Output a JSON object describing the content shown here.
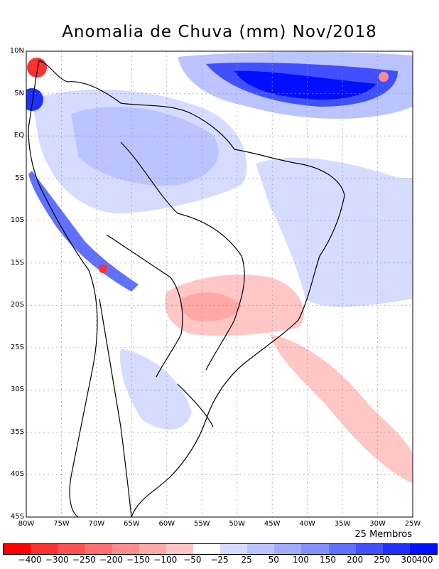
{
  "title": "Anomalia de Chuva (mm) Nov/2018",
  "members_label": "25 Membros",
  "lat_labels": [
    "10N",
    "5N",
    "EQ",
    "5S",
    "10S",
    "15S",
    "20S",
    "25S",
    "30S",
    "35S",
    "40S",
    "45S"
  ],
  "lon_labels": [
    "80W",
    "75W",
    "70W",
    "65W",
    "60W",
    "55W",
    "50W",
    "45W",
    "40W",
    "35W",
    "30W",
    "25W"
  ],
  "colorbar": {
    "colors": [
      "#ff0000",
      "#ff3030",
      "#ff5050",
      "#ff6e6e",
      "#ff8c8c",
      "#ffa8a8",
      "#ffc6c6",
      "#ffffff",
      "#d6dcff",
      "#bcc4ff",
      "#a0aaff",
      "#8490ff",
      "#6070ff",
      "#4050ff",
      "#2030ff",
      "#0010ff"
    ],
    "labels": [
      "−400",
      "−300",
      "−250",
      "−200",
      "−150",
      "−100",
      "−50",
      "−25",
      "25",
      "50",
      "100",
      "150",
      "200",
      "250",
      "300",
      "400"
    ]
  },
  "legend_colors": {
    "blue_light": "#d6dcff",
    "blue_mid": "#8490ff",
    "blue_dark": "#2030ff",
    "red_light": "#ffc6c6",
    "red_dark": "#ff3030"
  }
}
